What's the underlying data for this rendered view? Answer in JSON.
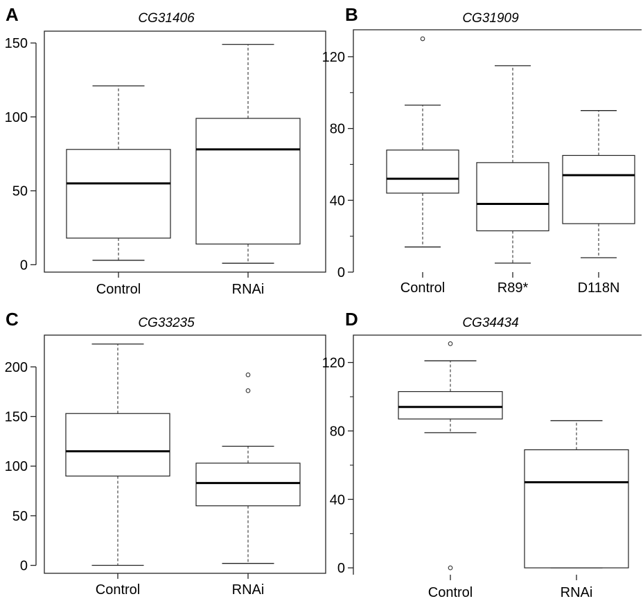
{
  "chart_data": [
    {
      "type": "boxplot",
      "panel": "A",
      "title": "CG31406",
      "ylim": [
        -5,
        158
      ],
      "yticks": [
        0,
        50,
        100,
        150
      ],
      "categories": [
        "Control",
        "RNAi"
      ],
      "boxes": [
        {
          "whisker_low": 3,
          "q1": 18,
          "median": 55,
          "q3": 78,
          "whisker_high": 121,
          "outliers": []
        },
        {
          "whisker_low": 1,
          "q1": 14,
          "median": 78,
          "q3": 99,
          "whisker_high": 149,
          "outliers": []
        }
      ]
    },
    {
      "type": "boxplot",
      "panel": "B",
      "title": "CG31909",
      "ylim": [
        0,
        135
      ],
      "yticks": [
        0,
        40,
        80,
        120
      ],
      "minor_yticks": [
        20,
        60,
        100
      ],
      "categories": [
        "Control",
        "R89*",
        "D118N"
      ],
      "boxes": [
        {
          "whisker_low": 14,
          "q1": 44,
          "median": 52,
          "q3": 68,
          "whisker_high": 93,
          "outliers": [
            130
          ]
        },
        {
          "whisker_low": 5,
          "q1": 23,
          "median": 38,
          "q3": 61,
          "whisker_high": 115,
          "outliers": []
        },
        {
          "whisker_low": 8,
          "q1": 27,
          "median": 54,
          "q3": 65,
          "whisker_high": 90,
          "outliers": []
        }
      ]
    },
    {
      "type": "boxplot",
      "panel": "C",
      "title": "CG33235",
      "ylim": [
        -8,
        232
      ],
      "yticks": [
        0,
        50,
        100,
        150,
        200
      ],
      "categories": [
        "Control",
        "RNAi"
      ],
      "boxes": [
        {
          "whisker_low": 0,
          "q1": 90,
          "median": 115,
          "q3": 153,
          "whisker_high": 223,
          "outliers": []
        },
        {
          "whisker_low": 2,
          "q1": 60,
          "median": 83,
          "q3": 103,
          "whisker_high": 120,
          "outliers": [
            176,
            192
          ]
        }
      ]
    },
    {
      "type": "boxplot",
      "panel": "D",
      "title": "CG34434",
      "ylim": [
        -4,
        136
      ],
      "yticks": [
        0,
        40,
        80,
        120
      ],
      "minor_yticks": [
        20,
        60,
        100
      ],
      "categories": [
        "Control",
        "RNAi"
      ],
      "boxes": [
        {
          "whisker_low": 79,
          "q1": 87,
          "median": 94,
          "q3": 103,
          "whisker_high": 121,
          "outliers": [
            0,
            131
          ]
        },
        {
          "whisker_low": 0,
          "q1": 0,
          "median": 50,
          "q3": 69,
          "whisker_high": 86,
          "outliers": []
        }
      ]
    }
  ]
}
